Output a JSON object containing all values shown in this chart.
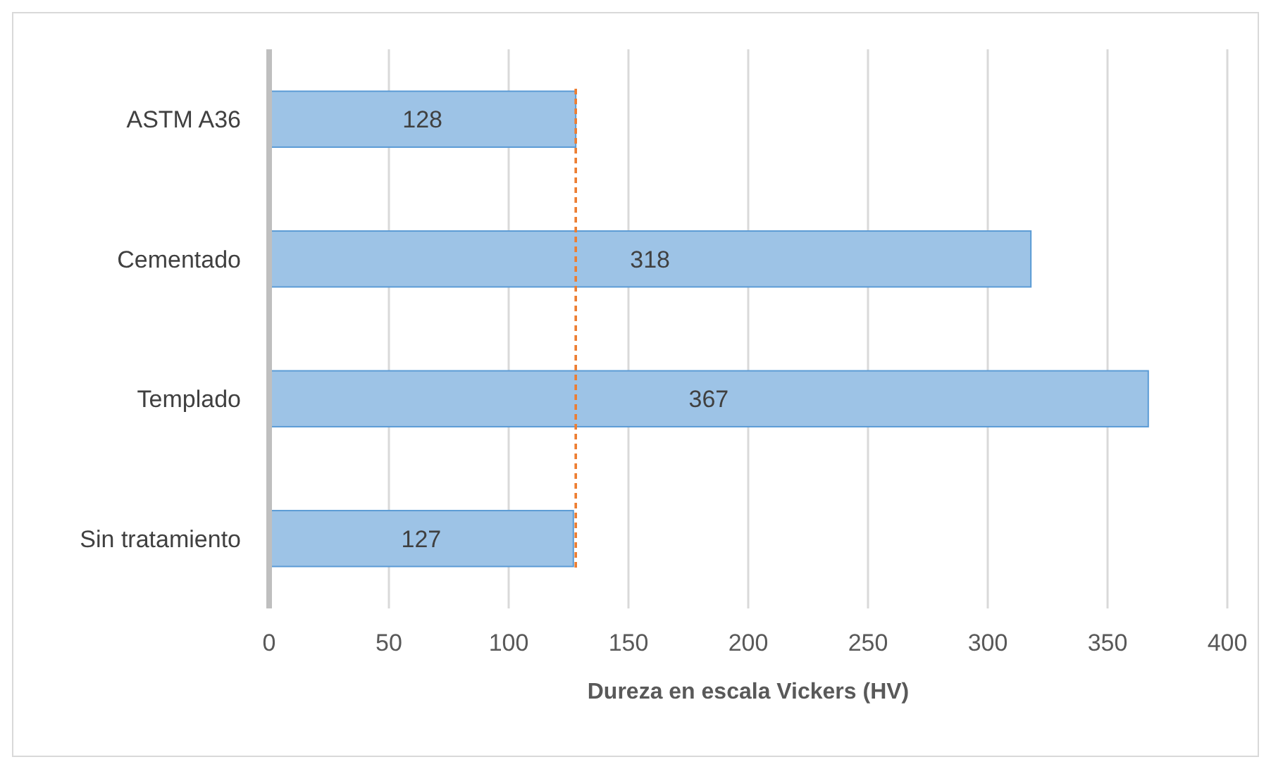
{
  "chart_data": {
    "type": "bar",
    "orientation": "horizontal",
    "categories": [
      "ASTM A36",
      "Cementado",
      "Templado",
      "Sin tratamiento"
    ],
    "values": [
      128,
      318,
      367,
      127
    ],
    "color": "#9dc3e6",
    "xlim": [
      0,
      400
    ],
    "xticks": [
      0,
      50,
      100,
      150,
      200,
      250,
      300,
      350,
      400
    ],
    "xlabel": "Dureza en escala Vickers (HV)",
    "grid": "x",
    "data_labels": true,
    "ref_lines": [
      {
        "axis": "x",
        "value": 128,
        "color": "#ed7d31",
        "line_style": "dashed"
      }
    ]
  }
}
